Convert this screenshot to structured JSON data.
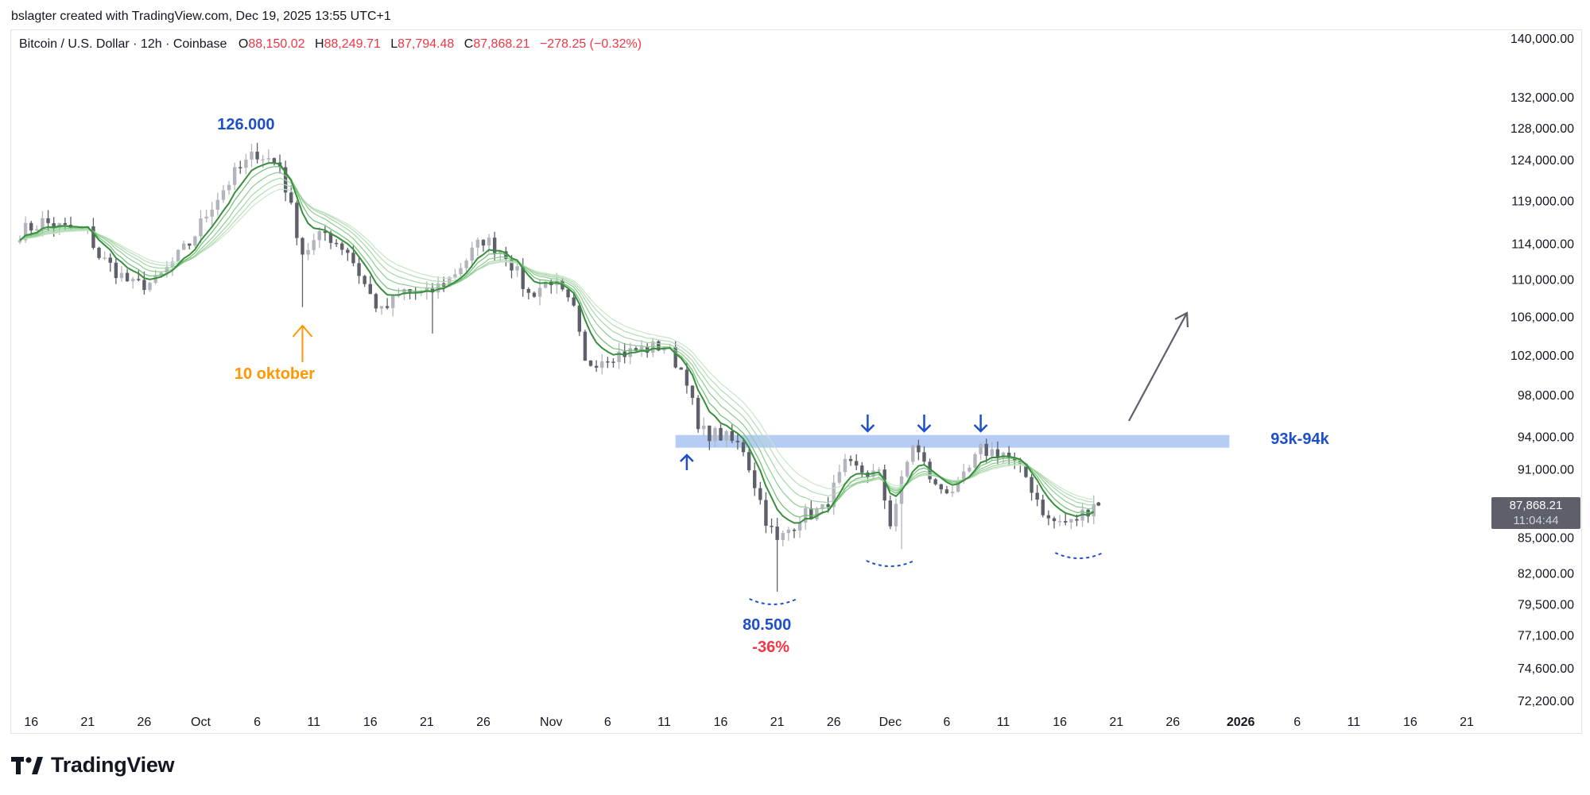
{
  "header": {
    "created_by": "bslagter created with TradingView.com, Dec 19, 2025 13:55 UTC+1"
  },
  "legend": {
    "symbol": "Bitcoin / U.S. Dollar · 12h · Coinbase",
    "open_label": "O",
    "open": "88,150.02",
    "high_label": "H",
    "high": "88,249.71",
    "low_label": "L",
    "low": "87,794.48",
    "close_label": "C",
    "close": "87,868.21",
    "change": "−278.25 (−0.32%)"
  },
  "last_price": {
    "price": "87,868.21",
    "countdown": "11:04:44"
  },
  "brand": {
    "name": "TradingView"
  },
  "colors": {
    "up_candle": "#b2b5be",
    "down_candle": "#5d606b",
    "ma_dark": "#388e3c",
    "ma_light": "#a5d6a7",
    "zone": "#adc6f3",
    "annotation_blue": "#1e4fc9",
    "annotation_orange": "#ff9800",
    "annotation_red": "#f23645"
  },
  "chart_data": {
    "type": "candlestick",
    "interval": "12h",
    "y_scale": "log",
    "ylim": [
      72200,
      140000
    ],
    "y_ticks": [
      "140,000.00",
      "132,000.00",
      "128,000.00",
      "124,000.00",
      "119,000.00",
      "114,000.00",
      "110,000.00",
      "106,000.00",
      "102,000.00",
      "98,000.00",
      "94,000.00",
      "91,000.00",
      "85,000.00",
      "82,000.00",
      "79,500.00",
      "77,100.00",
      "74,600.00",
      "72,200.00"
    ],
    "y_tick_values": [
      140000,
      132000,
      128000,
      124000,
      119000,
      114000,
      110000,
      106000,
      102000,
      98000,
      94000,
      91000,
      85000,
      82000,
      79500,
      77100,
      74600,
      72200
    ],
    "x_ticks": [
      "16",
      "21",
      "26",
      "Oct",
      "6",
      "11",
      "16",
      "21",
      "26",
      "Nov",
      "6",
      "11",
      "16",
      "21",
      "26",
      "Dec",
      "6",
      "11",
      "16",
      "21",
      "26",
      "2026",
      "6",
      "11",
      "16",
      "21"
    ],
    "x_tick_dates": [
      "2025-09-16",
      "2025-09-21",
      "2025-09-26",
      "2025-10-01",
      "2025-10-06",
      "2025-10-11",
      "2025-10-16",
      "2025-10-21",
      "2025-10-26",
      "2025-11-01",
      "2025-11-06",
      "2025-11-11",
      "2025-11-16",
      "2025-11-21",
      "2025-11-26",
      "2025-12-01",
      "2025-12-06",
      "2025-12-11",
      "2025-12-16",
      "2025-12-21",
      "2025-12-26",
      "2026-01-01",
      "2026-01-06",
      "2026-01-11",
      "2026-01-16",
      "2026-01-21"
    ],
    "x_start": "2025-09-15",
    "x_end": "2026-01-21",
    "daily_close": [
      {
        "date": "2025-09-15",
        "close": 115300
      },
      {
        "date": "2025-09-17",
        "close": 116500
      },
      {
        "date": "2025-09-19",
        "close": 115700
      },
      {
        "date": "2025-09-21",
        "close": 115400
      },
      {
        "date": "2025-09-22",
        "close": 112600
      },
      {
        "date": "2025-09-25",
        "close": 109300
      },
      {
        "date": "2025-09-27",
        "close": 109700
      },
      {
        "date": "2025-09-30",
        "close": 114000
      },
      {
        "date": "2025-10-02",
        "close": 118600
      },
      {
        "date": "2025-10-04",
        "close": 122200
      },
      {
        "date": "2025-10-06",
        "close": 124900
      },
      {
        "date": "2025-10-08",
        "close": 123200
      },
      {
        "date": "2025-10-10",
        "close": 113000
      },
      {
        "date": "2025-10-12",
        "close": 115200
      },
      {
        "date": "2025-10-14",
        "close": 113200
      },
      {
        "date": "2025-10-16",
        "close": 108200
      },
      {
        "date": "2025-10-17",
        "close": 106400
      },
      {
        "date": "2025-10-19",
        "close": 108700
      },
      {
        "date": "2025-10-21",
        "close": 108300
      },
      {
        "date": "2025-10-23",
        "close": 110100
      },
      {
        "date": "2025-10-26",
        "close": 114500
      },
      {
        "date": "2025-10-28",
        "close": 112900
      },
      {
        "date": "2025-10-30",
        "close": 108300
      },
      {
        "date": "2025-11-01",
        "close": 110000
      },
      {
        "date": "2025-11-03",
        "close": 106500
      },
      {
        "date": "2025-11-04",
        "close": 101000
      },
      {
        "date": "2025-11-06",
        "close": 102000
      },
      {
        "date": "2025-11-08",
        "close": 102300
      },
      {
        "date": "2025-11-11",
        "close": 103000
      },
      {
        "date": "2025-11-13",
        "close": 99700
      },
      {
        "date": "2025-11-14",
        "close": 94500
      },
      {
        "date": "2025-11-16",
        "close": 94100
      },
      {
        "date": "2025-11-18",
        "close": 92900
      },
      {
        "date": "2025-11-20",
        "close": 86600
      },
      {
        "date": "2025-11-21",
        "close": 84500
      },
      {
        "date": "2025-11-23",
        "close": 86800
      },
      {
        "date": "2025-11-25",
        "close": 87300
      },
      {
        "date": "2025-11-27",
        "close": 91200
      },
      {
        "date": "2025-11-30",
        "close": 90400
      },
      {
        "date": "2025-12-01",
        "close": 86300
      },
      {
        "date": "2025-12-03",
        "close": 93400
      },
      {
        "date": "2025-12-05",
        "close": 89300
      },
      {
        "date": "2025-12-07",
        "close": 89200
      },
      {
        "date": "2025-12-09",
        "close": 92700
      },
      {
        "date": "2025-12-11",
        "close": 92500
      },
      {
        "date": "2025-12-13",
        "close": 90300
      },
      {
        "date": "2025-12-15",
        "close": 86400
      },
      {
        "date": "2025-12-17",
        "close": 86200
      },
      {
        "date": "2025-12-19",
        "close": 87868
      }
    ],
    "annotations": {
      "ath_label": "126.000",
      "crash_label": "10 oktober",
      "low_label": "80.500",
      "drawdown_label": "-36%",
      "zone_label": "93k-94k",
      "zone_range": [
        93000,
        94000
      ]
    }
  }
}
